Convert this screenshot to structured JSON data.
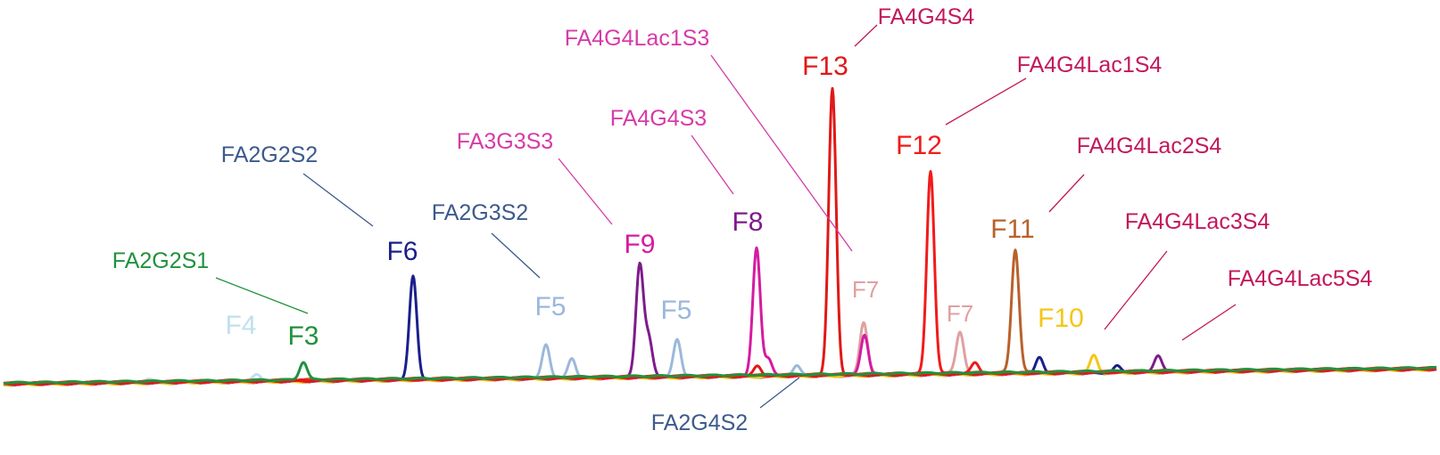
{
  "chart_data": {
    "type": "line",
    "title": "",
    "xlabel": "",
    "ylabel": "",
    "grid": false,
    "legend": "none",
    "fraction_labels": [
      {
        "name": "F13",
        "color": "#e01818"
      },
      {
        "name": "F12",
        "color": "#f21a1a"
      },
      {
        "name": "F11",
        "color": "#b8612a"
      },
      {
        "name": "F10",
        "color": "#f6c518"
      },
      {
        "name": "F9",
        "color": "#d51ba0"
      },
      {
        "name": "F8",
        "color": "#7e1b8c"
      },
      {
        "name": "F7",
        "color": "#e0a0a0"
      },
      {
        "name": "F7",
        "color": "#e0a0a0"
      },
      {
        "name": "F6",
        "color": "#1a1f8a"
      },
      {
        "name": "F5",
        "color": "#9ab8dc"
      },
      {
        "name": "F5",
        "color": "#9ab8dc"
      },
      {
        "name": "F4",
        "color": "#bfe0ee"
      },
      {
        "name": "F3",
        "color": "#21913e"
      }
    ],
    "glycan_annotations": [
      {
        "text": "FA4G4S4",
        "color": "#c2185b"
      },
      {
        "text": "FA4G4Lac1S3",
        "color": "#d63ba8"
      },
      {
        "text": "FA4G4Lac1S4",
        "color": "#c2185b"
      },
      {
        "text": "FA4G4S3",
        "color": "#d63ba8"
      },
      {
        "text": "FA3G3S3",
        "color": "#d63ba8"
      },
      {
        "text": "FA4G4Lac2S4",
        "color": "#c2185b"
      },
      {
        "text": "FA2G2S2",
        "color": "#3c5a8c"
      },
      {
        "text": "FA2G3S2",
        "color": "#3c5a8c"
      },
      {
        "text": "FA4G4Lac3S4",
        "color": "#c2185b"
      },
      {
        "text": "FA2G2S1",
        "color": "#21913e"
      },
      {
        "text": "FA4G4Lac5S4",
        "color": "#c2185b"
      },
      {
        "text": "FA2G4S2",
        "color": "#3c5a8c"
      }
    ],
    "series": [
      {
        "name": "F3",
        "color": "#21913e",
        "peaks": [
          {
            "x": 340,
            "height": 20
          }
        ]
      },
      {
        "name": "F4",
        "color": "#bfe0ee",
        "peaks": [
          {
            "x": 288,
            "height": 7
          },
          {
            "x": 168,
            "height": 3
          }
        ]
      },
      {
        "name": "F5",
        "color": "#9ab8dc",
        "peaks": [
          {
            "x": 612,
            "height": 38
          },
          {
            "x": 641,
            "height": 22
          },
          {
            "x": 759,
            "height": 42
          },
          {
            "x": 893,
            "height": 12
          }
        ]
      },
      {
        "name": "F6",
        "color": "#1a1f8a",
        "peaks": [
          {
            "x": 463,
            "height": 118
          },
          {
            "x": 1165,
            "height": 18
          },
          {
            "x": 1252,
            "height": 8
          }
        ]
      },
      {
        "name": "F7",
        "color": "#e0a0a0",
        "peaks": [
          {
            "x": 968,
            "height": 58
          },
          {
            "x": 1076,
            "height": 46
          }
        ]
      },
      {
        "name": "F8",
        "color": "#7e1b8c",
        "peaks": [
          {
            "x": 717,
            "height": 126
          },
          {
            "x": 727,
            "height": 42
          },
          {
            "x": 1298,
            "height": 17
          }
        ]
      },
      {
        "name": "F9",
        "color": "#d51ba0",
        "peaks": [
          {
            "x": 848,
            "height": 144
          },
          {
            "x": 861,
            "height": 20
          },
          {
            "x": 969,
            "height": 45
          }
        ]
      },
      {
        "name": "F10",
        "color": "#f6c518",
        "peaks": [
          {
            "x": 1226,
            "height": 20
          }
        ]
      },
      {
        "name": "F11",
        "color": "#b8612a",
        "peaks": [
          {
            "x": 1138,
            "height": 138
          }
        ]
      },
      {
        "name": "F12",
        "color": "#f21a1a",
        "peaks": [
          {
            "x": 1043,
            "height": 228
          },
          {
            "x": 1093,
            "height": 12
          }
        ]
      },
      {
        "name": "F13",
        "color": "#e01818",
        "peaks": [
          {
            "x": 933,
            "height": 322
          },
          {
            "x": 849,
            "height": 12
          }
        ]
      }
    ]
  }
}
